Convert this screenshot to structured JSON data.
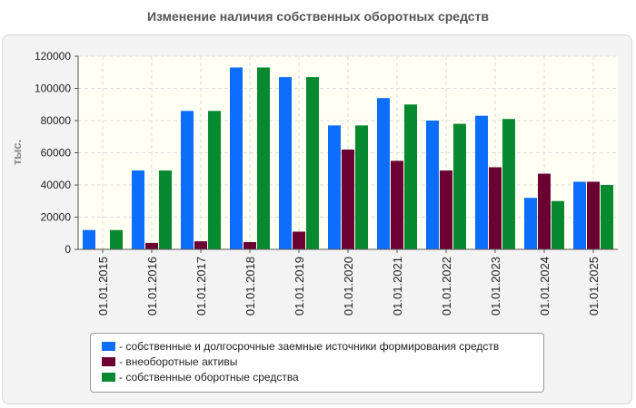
{
  "chart_data": {
    "type": "bar",
    "title": "Изменение наличия собственных оборотных средств",
    "xlabel": "",
    "ylabel": "тыс.",
    "ylim": [
      0,
      120000
    ],
    "yticks": [
      0,
      20000,
      40000,
      60000,
      80000,
      100000,
      120000
    ],
    "grid": true,
    "legend_position": "bottom",
    "categories": [
      "01.01.2015",
      "01.01.2016",
      "01.01.2017",
      "01.01.2018",
      "01.01.2019",
      "01.01.2020",
      "01.01.2021",
      "01.01.2022",
      "01.01.2023",
      "01.01.2024",
      "01.01.2025"
    ],
    "series": [
      {
        "name": "- собственные и долгосрочные заемные источники формирования средств",
        "color": "#0d6efd",
        "values": [
          12000,
          49000,
          86000,
          113000,
          107000,
          77000,
          94000,
          80000,
          83000,
          32000,
          42000
        ]
      },
      {
        "name": "- внеоборотные активы",
        "color": "#6b0033",
        "values": [
          300,
          4000,
          5000,
          4500,
          11000,
          62000,
          55000,
          49000,
          51000,
          47000,
          42000
        ]
      },
      {
        "name": "- собственные оборотные средства",
        "color": "#078a2f",
        "values": [
          12000,
          49000,
          86000,
          113000,
          107000,
          77000,
          90000,
          78000,
          81000,
          30000,
          40000
        ]
      }
    ]
  }
}
